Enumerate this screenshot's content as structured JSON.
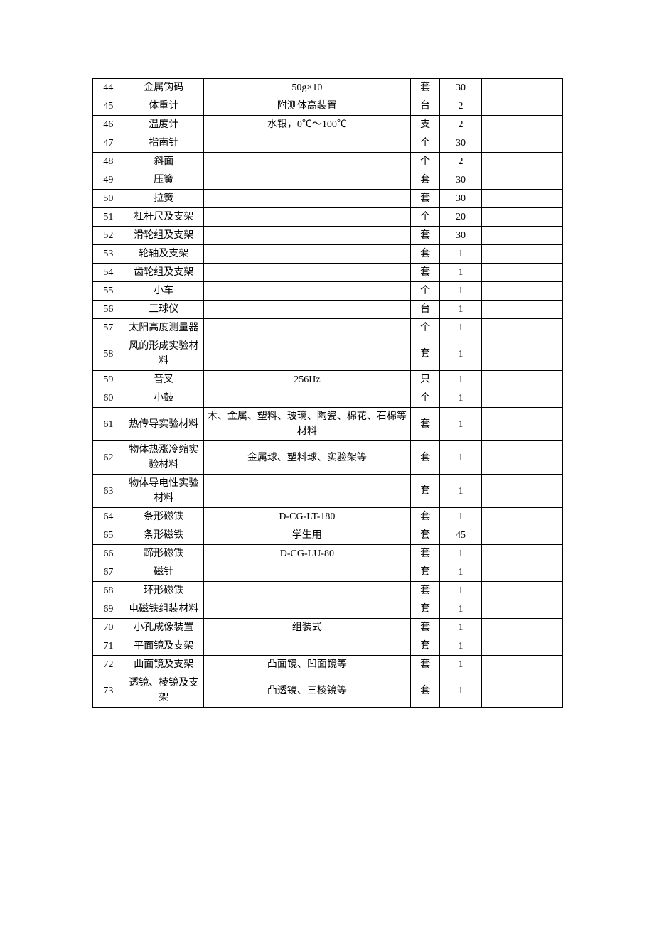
{
  "table": {
    "columns": {
      "widths": [
        42,
        108,
        280,
        40,
        56,
        110
      ],
      "alignment": "center"
    },
    "border_color": "#000000",
    "background_color": "#ffffff",
    "text_color": "#000000",
    "font_size": 14,
    "font_family": "SimSun",
    "rows": [
      {
        "num": "44",
        "name": "金属钩码",
        "spec": "50g×10",
        "unit": "套",
        "qty": "30",
        "note": ""
      },
      {
        "num": "45",
        "name": "体重计",
        "spec": "附测体高装置",
        "unit": "台",
        "qty": "2",
        "note": ""
      },
      {
        "num": "46",
        "name": "温度计",
        "spec": "水银，0℃～100℃",
        "unit": "支",
        "qty": "2",
        "note": ""
      },
      {
        "num": "47",
        "name": "指南针",
        "spec": "",
        "unit": "个",
        "qty": "30",
        "note": ""
      },
      {
        "num": "48",
        "name": "斜面",
        "spec": "",
        "unit": "个",
        "qty": "2",
        "note": ""
      },
      {
        "num": "49",
        "name": "压簧",
        "spec": "",
        "unit": "套",
        "qty": "30",
        "note": ""
      },
      {
        "num": "50",
        "name": "拉簧",
        "spec": "",
        "unit": "套",
        "qty": "30",
        "note": ""
      },
      {
        "num": "51",
        "name": "杠杆尺及支架",
        "spec": "",
        "unit": "个",
        "qty": "20",
        "note": ""
      },
      {
        "num": "52",
        "name": "滑轮组及支架",
        "spec": "",
        "unit": "套",
        "qty": "30",
        "note": ""
      },
      {
        "num": "53",
        "name": "轮轴及支架",
        "spec": "",
        "unit": "套",
        "qty": "1",
        "note": ""
      },
      {
        "num": "54",
        "name": "齿轮组及支架",
        "spec": "",
        "unit": "套",
        "qty": "1",
        "note": ""
      },
      {
        "num": "55",
        "name": "小车",
        "spec": "",
        "unit": "个",
        "qty": "1",
        "note": ""
      },
      {
        "num": "56",
        "name": "三球仪",
        "spec": "",
        "unit": "台",
        "qty": "1",
        "note": ""
      },
      {
        "num": "57",
        "name": "太阳高度测量器",
        "spec": "",
        "unit": "个",
        "qty": "1",
        "note": ""
      },
      {
        "num": "58",
        "name": "风的形成实验材料",
        "spec": "",
        "unit": "套",
        "qty": "1",
        "note": ""
      },
      {
        "num": "59",
        "name": "音叉",
        "spec": "256Hz",
        "unit": "只",
        "qty": "1",
        "note": ""
      },
      {
        "num": "60",
        "name": "小鼓",
        "spec": "",
        "unit": "个",
        "qty": "1",
        "note": ""
      },
      {
        "num": "61",
        "name": "热传导实验材料",
        "spec": "木、金属、塑料、玻璃、陶瓷、棉花、石棉等材料",
        "unit": "套",
        "qty": "1",
        "note": ""
      },
      {
        "num": "62",
        "name": "物体热涨冷缩实验材料",
        "spec": "金属球、塑料球、实验架等",
        "unit": "套",
        "qty": "1",
        "note": ""
      },
      {
        "num": "63",
        "name": "物体导电性实验材料",
        "spec": "",
        "unit": "套",
        "qty": "1",
        "note": ""
      },
      {
        "num": "64",
        "name": "条形磁铁",
        "spec": "D-CG-LT-180",
        "unit": "套",
        "qty": "1",
        "note": ""
      },
      {
        "num": "65",
        "name": "条形磁铁",
        "spec": "学生用",
        "unit": "套",
        "qty": "45",
        "note": ""
      },
      {
        "num": "66",
        "name": "蹄形磁铁",
        "spec": "D-CG-LU-80",
        "unit": "套",
        "qty": "1",
        "note": ""
      },
      {
        "num": "67",
        "name": "磁针",
        "spec": "",
        "unit": "套",
        "qty": "1",
        "note": ""
      },
      {
        "num": "68",
        "name": "环形磁铁",
        "spec": "",
        "unit": "套",
        "qty": "1",
        "note": ""
      },
      {
        "num": "69",
        "name": "电磁铁组装材料",
        "spec": "",
        "unit": "套",
        "qty": "1",
        "note": ""
      },
      {
        "num": "70",
        "name": "小孔成像装置",
        "spec": "组装式",
        "unit": "套",
        "qty": "1",
        "note": ""
      },
      {
        "num": "71",
        "name": "平面镜及支架",
        "spec": "",
        "unit": "套",
        "qty": "1",
        "note": ""
      },
      {
        "num": "72",
        "name": "曲面镜及支架",
        "spec": "凸面镜、凹面镜等",
        "unit": "套",
        "qty": "1",
        "note": ""
      },
      {
        "num": "73",
        "name": "透镜、棱镜及支架",
        "spec": "凸透镜、三棱镜等",
        "unit": "套",
        "qty": "1",
        "note": ""
      }
    ]
  }
}
